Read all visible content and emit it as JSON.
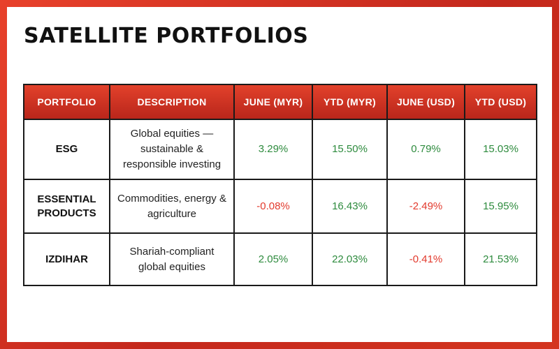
{
  "title": "SATELLITE PORTFOLIOS",
  "table": {
    "headers": [
      "PORTFOLIO",
      "DESCRIPTION",
      "JUNE (MYR)",
      "YTD (MYR)",
      "JUNE (USD)",
      "YTD (USD)"
    ],
    "rows": [
      {
        "portfolio": "ESG",
        "description": "Global equities — sustainable & responsible investing",
        "june_myr": "3.29%",
        "ytd_myr": "15.50%",
        "june_usd": "0.79%",
        "ytd_usd": "15.03%"
      },
      {
        "portfolio": "ESSENTIAL PRODUCTS",
        "description": "Commodities, energy & agriculture",
        "june_myr": "-0.08%",
        "ytd_myr": "16.43%",
        "june_usd": "-2.49%",
        "ytd_usd": "15.95%"
      },
      {
        "portfolio": "IZDIHAR",
        "description": "Shariah-compliant global equities",
        "june_myr": "2.05%",
        "ytd_myr": "22.03%",
        "june_usd": "-0.41%",
        "ytd_usd": "21.53%"
      }
    ]
  },
  "colors": {
    "frame": "#d4351f",
    "header_bg": "#c8301f",
    "positive": "#2e8b3e",
    "negative": "#e23a2d"
  }
}
